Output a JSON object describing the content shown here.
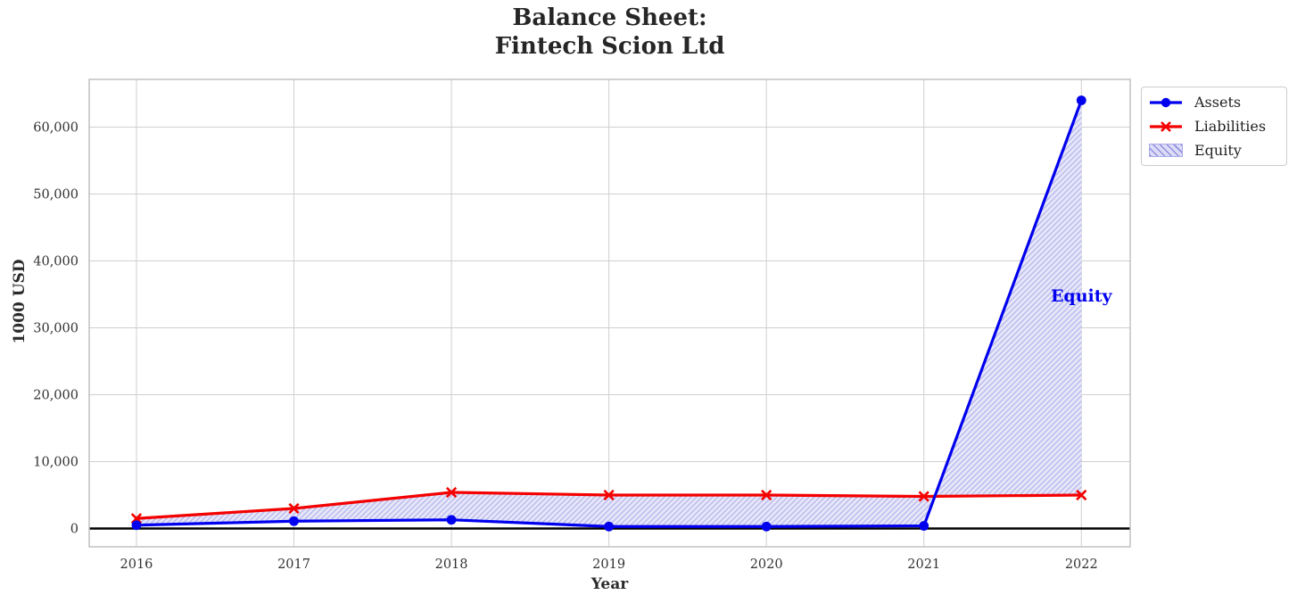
{
  "chart_data": {
    "type": "line",
    "title": "Balance Sheet:\nFintech Scion Ltd",
    "title_lines": {
      "line1": "Balance Sheet:",
      "line2": "Fintech Scion Ltd"
    },
    "xlabel": "Year",
    "ylabel": "1000 USD",
    "x": [
      2016,
      2017,
      2018,
      2019,
      2020,
      2021,
      2022
    ],
    "series": [
      {
        "name": "Assets",
        "color": "#0000ee",
        "marker": "circle",
        "values": [
          500,
          1100,
          1300,
          300,
          300,
          400,
          64000
        ]
      },
      {
        "name": "Liabilities",
        "color": "#f40000",
        "marker": "x",
        "values": [
          1500,
          3000,
          5400,
          5000,
          5000,
          4800,
          5000
        ]
      }
    ],
    "fill": {
      "name": "Equity",
      "between": [
        "Assets",
        "Liabilities"
      ],
      "facecolor": "#e7e7f9",
      "hatch_color": "#b9b9ee"
    },
    "annotation": {
      "text": "Equity",
      "x": 2022,
      "y": 34700,
      "color": "#0000ee"
    },
    "yticks": [
      0,
      10000,
      20000,
      30000,
      40000,
      50000,
      60000
    ],
    "ylim": [
      -2733,
      67133
    ],
    "xlim": [
      2015.7,
      2022.31
    ],
    "grid": true,
    "grid_color": "#cfcfcf",
    "spine_color": "#bdbdbd",
    "tick_text_color": "#333333",
    "zero_line": true,
    "zero_line_color": "#000000",
    "legend_position": "outside-top-right"
  }
}
